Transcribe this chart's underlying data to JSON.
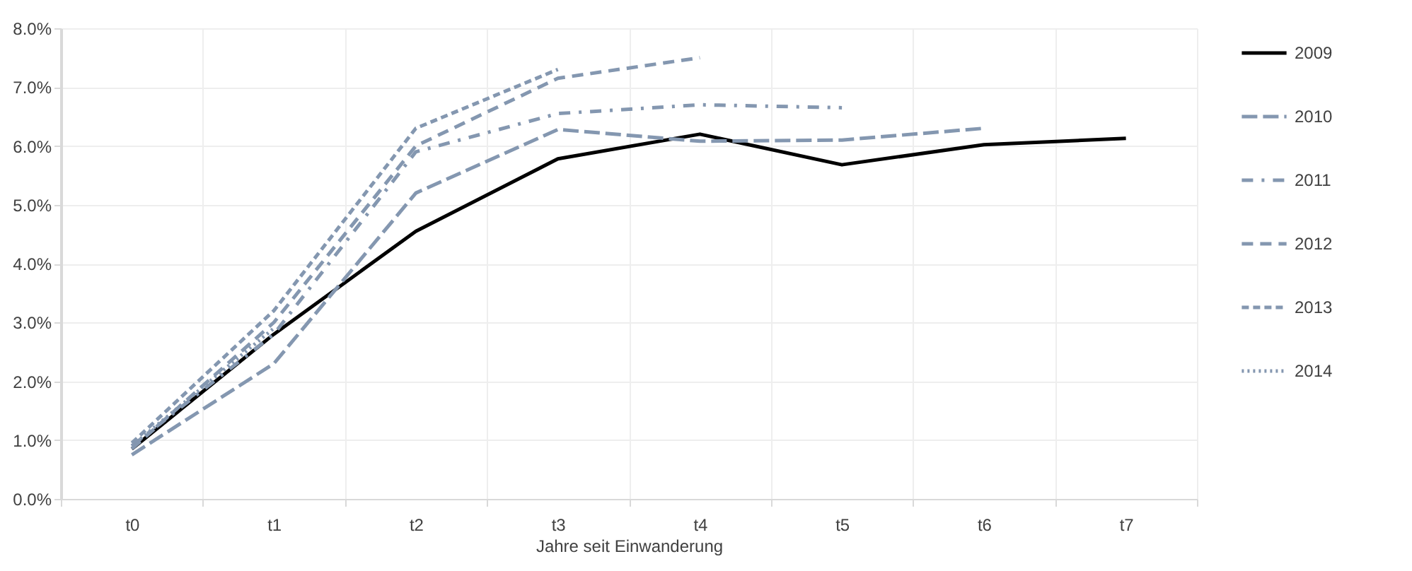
{
  "chart_data": {
    "type": "line",
    "xlabel": "Jahre seit Einwanderung",
    "categories": [
      "t0",
      "t1",
      "t2",
      "t3",
      "t4",
      "t5",
      "t6",
      "t7"
    ],
    "ylim": [
      0,
      8
    ],
    "yticks": [
      {
        "value": 0,
        "label": "0.0%"
      },
      {
        "value": 1,
        "label": "1.0%"
      },
      {
        "value": 2,
        "label": "2.0%"
      },
      {
        "value": 3,
        "label": "3.0%"
      },
      {
        "value": 4,
        "label": "4.0%"
      },
      {
        "value": 5,
        "label": "5.0%"
      },
      {
        "value": 6,
        "label": "6.0%"
      },
      {
        "value": 7,
        "label": "7.0%"
      },
      {
        "value": 8,
        "label": "8.0%"
      }
    ],
    "grid": true,
    "legend": "right",
    "series": [
      {
        "name": "2009",
        "color": "#000000",
        "line_style": "solid",
        "values": [
          0.85,
          2.8,
          4.55,
          5.78,
          6.2,
          5.68,
          6.02,
          6.13
        ]
      },
      {
        "name": "2010",
        "color": "#8497b0",
        "line_style": "longdash",
        "values": [
          0.75,
          2.3,
          5.2,
          6.28,
          6.08,
          6.1,
          6.3,
          null
        ]
      },
      {
        "name": "2011",
        "color": "#8497b0",
        "line_style": "dashdot",
        "values": [
          0.9,
          2.8,
          5.9,
          6.55,
          6.7,
          6.65,
          null,
          null
        ]
      },
      {
        "name": "2012",
        "color": "#8497b0",
        "line_style": "dashed",
        "values": [
          0.85,
          3.0,
          6.0,
          7.15,
          7.5,
          null,
          null,
          null
        ]
      },
      {
        "name": "2013",
        "color": "#8497b0",
        "line_style": "shortdash",
        "values": [
          0.95,
          3.2,
          6.3,
          7.3,
          null,
          null,
          null,
          null
        ]
      },
      {
        "name": "2014",
        "color": "#8497b0",
        "line_style": "dotted",
        "values": [
          0.9,
          2.9,
          null,
          null,
          null,
          null,
          null,
          null
        ]
      }
    ]
  }
}
